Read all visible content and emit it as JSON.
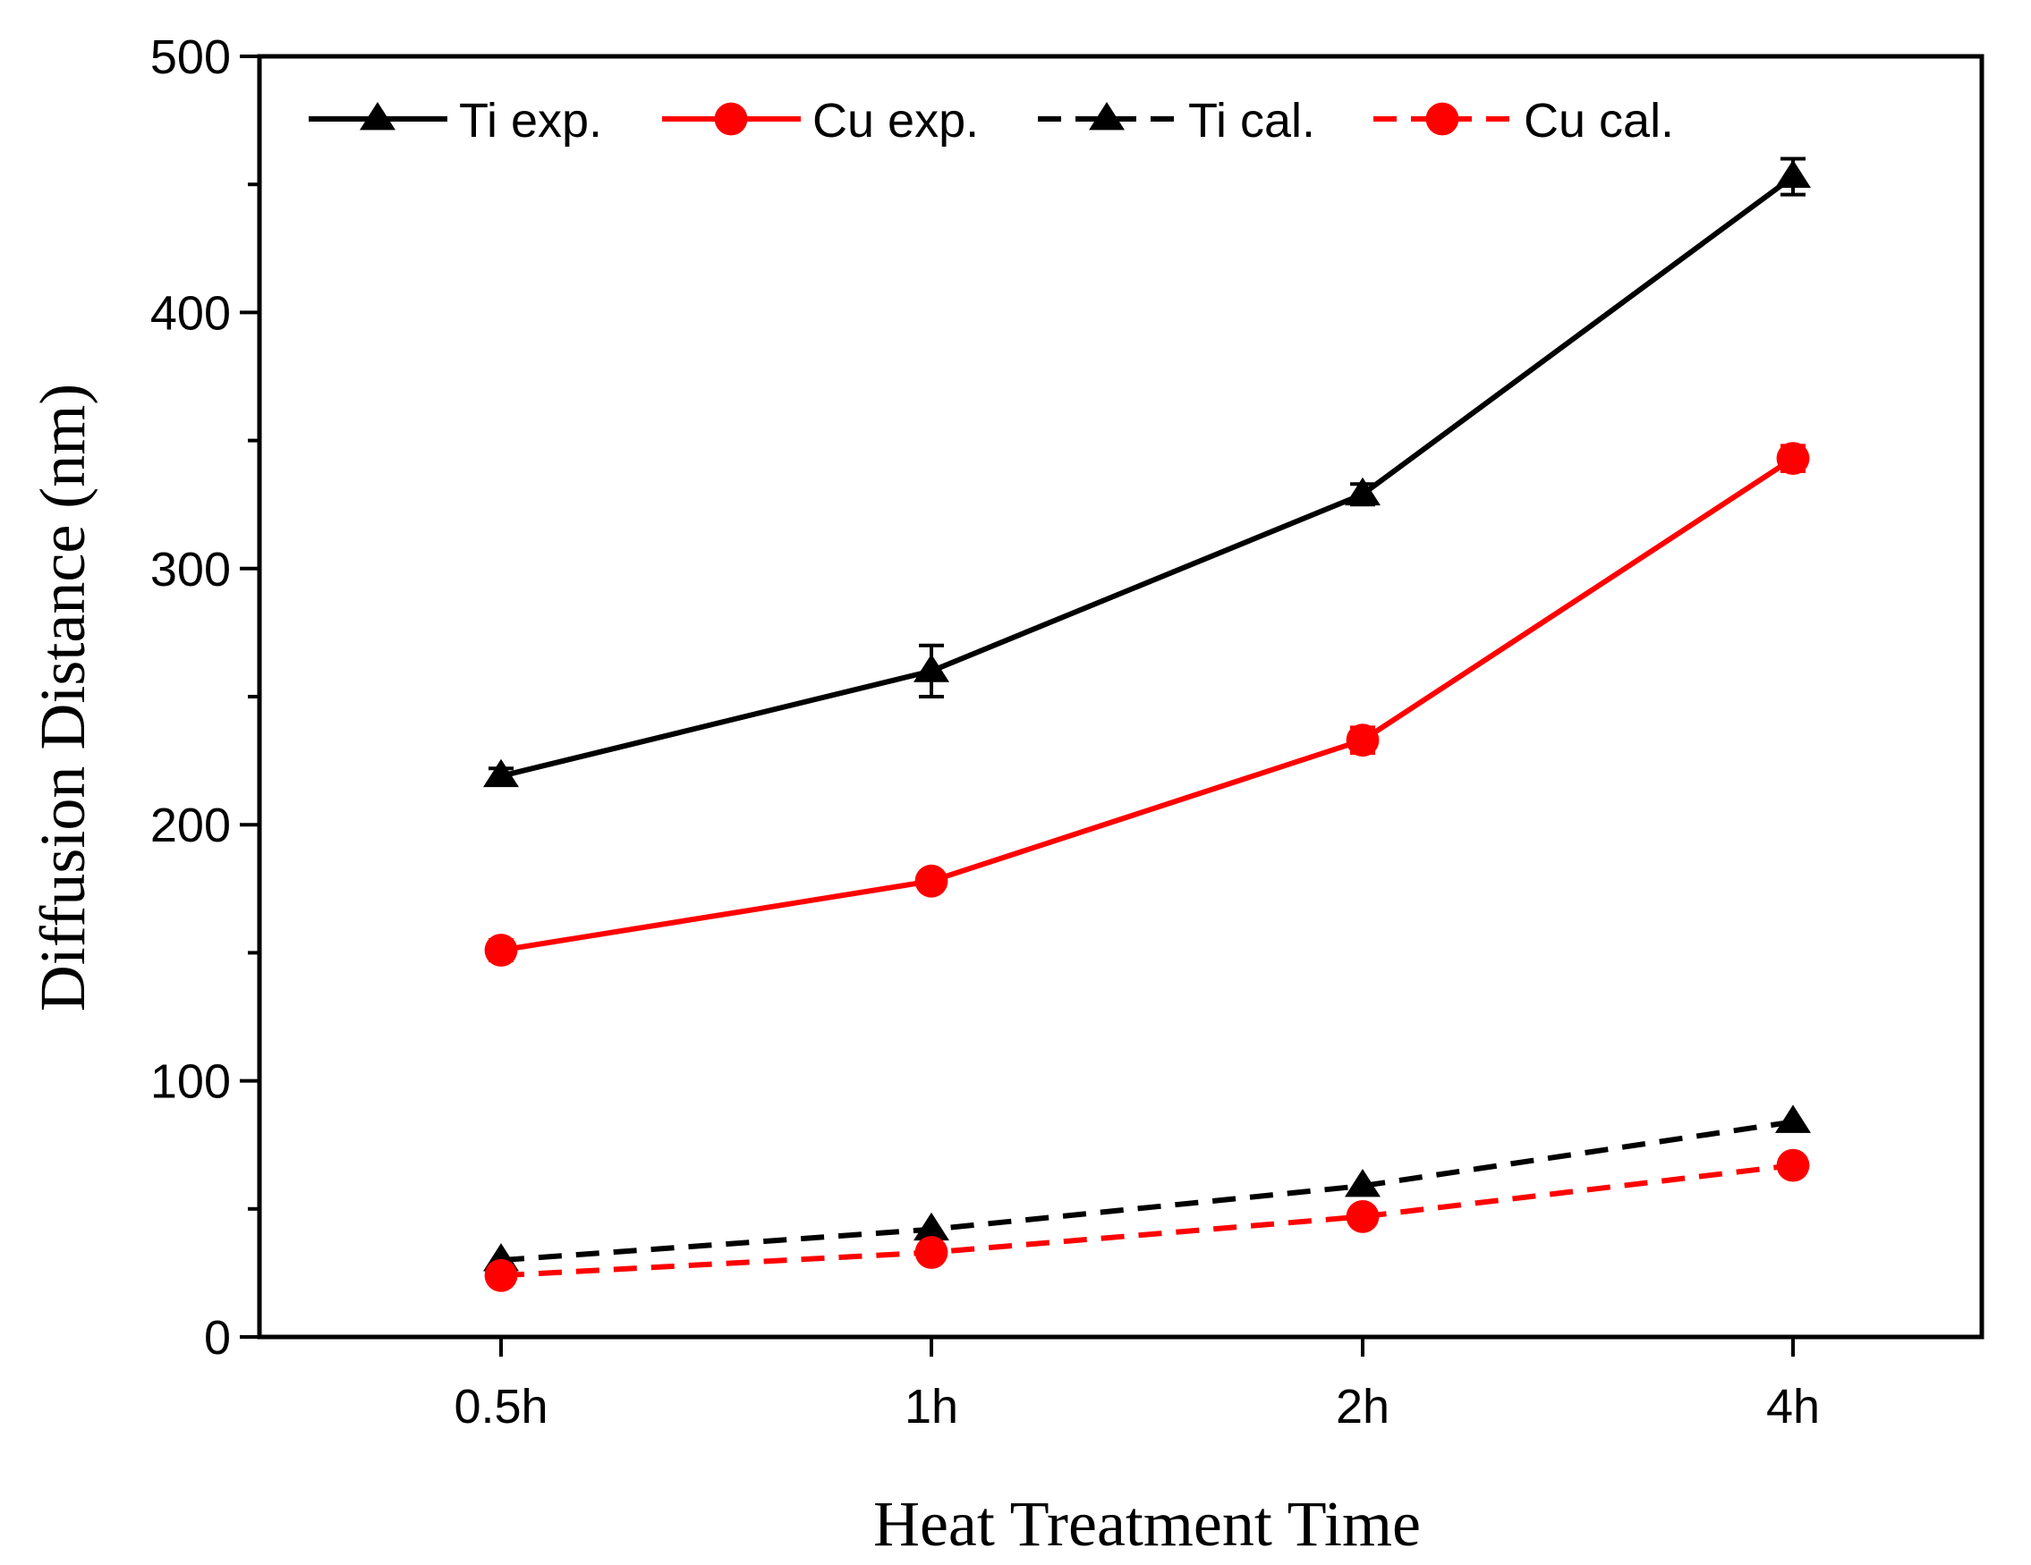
{
  "chart_data": {
    "type": "line",
    "title": "",
    "xlabel": "Heat Treatment Time",
    "ylabel": "Diffusion Distance (nm)",
    "categories": [
      "0.5h",
      "1h",
      "2h",
      "4h"
    ],
    "ylim": [
      0,
      500
    ],
    "yticks": [
      0,
      100,
      200,
      300,
      400,
      500
    ],
    "grid": false,
    "legend_position": "top",
    "series": [
      {
        "name": "Ti exp.",
        "values": [
          219,
          260,
          329,
          453
        ],
        "errors": [
          3,
          10,
          4,
          7
        ],
        "color": "#000000",
        "marker": "triangle",
        "dashed": false
      },
      {
        "name": "Cu exp.",
        "values": [
          151,
          178,
          233,
          343
        ],
        "errors": [
          4,
          3,
          5,
          5
        ],
        "color": "#ff0000",
        "marker": "circle",
        "dashed": false
      },
      {
        "name": "Ti cal.",
        "values": [
          30,
          42,
          59,
          84
        ],
        "errors": [],
        "color": "#000000",
        "marker": "triangle",
        "dashed": true
      },
      {
        "name": "Cu cal.",
        "values": [
          24,
          33,
          47,
          67
        ],
        "errors": [],
        "color": "#ff0000",
        "marker": "circle",
        "dashed": true
      }
    ]
  }
}
